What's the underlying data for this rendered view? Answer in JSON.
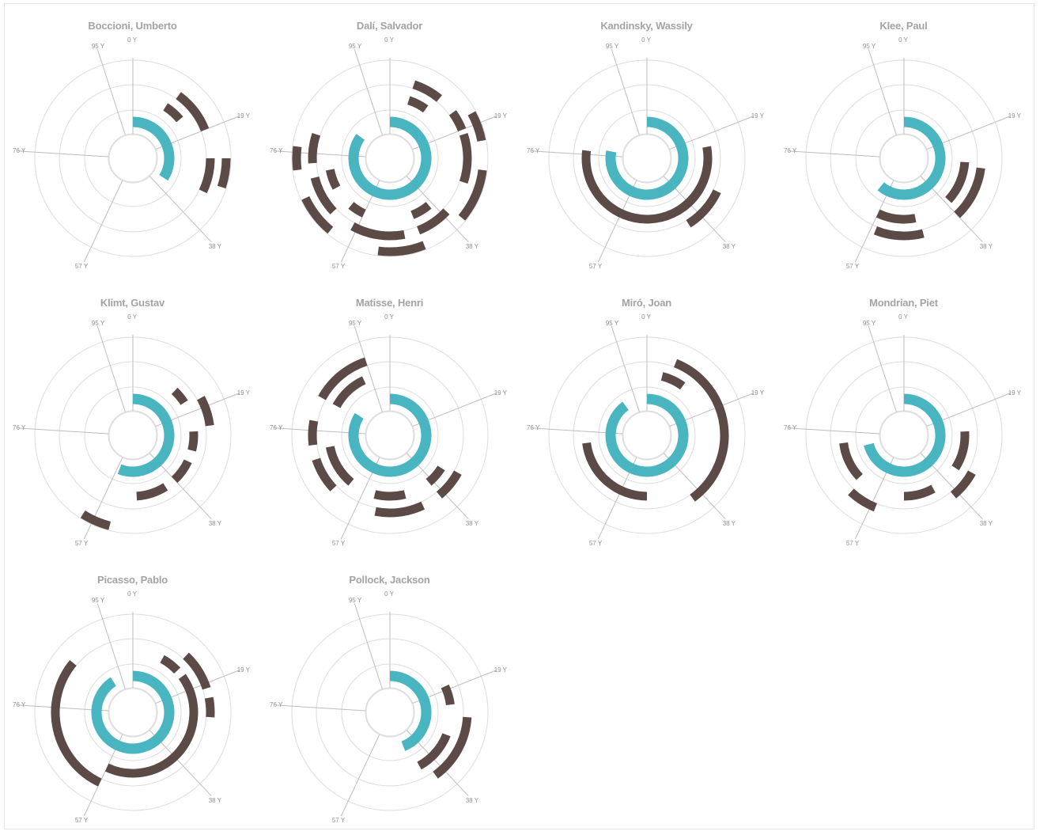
{
  "axis_labels": [
    "0 Y",
    "19 Y",
    "38 Y",
    "57 Y",
    "76 Y",
    "95 Y"
  ],
  "colors": {
    "life": "#48b5c1",
    "period": "#5b4a45",
    "grid": "#dcdcdc",
    "axis": "#bdbdbd",
    "title": "#a3a3a3",
    "tick": "#8e8e8e"
  },
  "chart_data": [
    {
      "type": "radial-timeline",
      "title": "Boccioni, Umberto",
      "life": [
        0,
        34
      ],
      "periods": [
        {
          "ring": 2,
          "start": 9,
          "end": 14
        },
        {
          "ring": 3,
          "start": 10,
          "end": 19
        },
        {
          "ring": 3,
          "start": 25,
          "end": 32
        },
        {
          "ring": 4,
          "start": 25,
          "end": 30
        }
      ]
    },
    {
      "type": "radial-timeline",
      "title": "Dalí, Salvador",
      "life": [
        0,
        85
      ],
      "periods": [
        {
          "ring": 2,
          "start": 5,
          "end": 10
        },
        {
          "ring": 3,
          "start": 5,
          "end": 11
        },
        {
          "ring": 3,
          "start": 15,
          "end": 19
        },
        {
          "ring": 4,
          "start": 17,
          "end": 22
        },
        {
          "ring": 3,
          "start": 20,
          "end": 30
        },
        {
          "ring": 4,
          "start": 27,
          "end": 36
        },
        {
          "ring": 2,
          "start": 39,
          "end": 44
        },
        {
          "ring": 3,
          "start": 37,
          "end": 44
        },
        {
          "ring": 3,
          "start": 47,
          "end": 54
        },
        {
          "ring": 4,
          "start": 44,
          "end": 52
        },
        {
          "ring": 2,
          "start": 57,
          "end": 61
        },
        {
          "ring": 3,
          "start": 53,
          "end": 58
        },
        {
          "ring": 3,
          "start": 63,
          "end": 71
        },
        {
          "ring": 4,
          "start": 61,
          "end": 68
        },
        {
          "ring": 2,
          "start": 67,
          "end": 72
        },
        {
          "ring": 3,
          "start": 74,
          "end": 80
        },
        {
          "ring": 4,
          "start": 73,
          "end": 77
        }
      ]
    },
    {
      "type": "radial-timeline",
      "title": "Kandinsky, Wassily",
      "life": [
        0,
        78
      ],
      "periods": [
        {
          "ring": 2,
          "start": 33,
          "end": 40
        },
        {
          "ring": 3,
          "start": 32,
          "end": 41
        },
        {
          "ring": 2,
          "start": 22,
          "end": 77
        }
      ]
    },
    {
      "type": "radial-timeline",
      "title": "Klee, Paul",
      "life": [
        0,
        61
      ],
      "periods": [
        {
          "ring": 2,
          "start": 26,
          "end": 37
        },
        {
          "ring": 3,
          "start": 46,
          "end": 56
        },
        {
          "ring": 2,
          "start": 47,
          "end": 57
        },
        {
          "ring": 3,
          "start": 27,
          "end": 38
        }
      ]
    },
    {
      "type": "radial-timeline",
      "title": "Klimt, Gustav",
      "life": [
        0,
        56
      ],
      "periods": [
        {
          "ring": 2,
          "start": 12,
          "end": 16
        },
        {
          "ring": 3,
          "start": 17,
          "end": 23
        },
        {
          "ring": 2,
          "start": 24,
          "end": 29
        },
        {
          "ring": 2,
          "start": 32,
          "end": 38
        },
        {
          "ring": 2,
          "start": 41,
          "end": 49
        },
        {
          "ring": 4,
          "start": 54,
          "end": 59
        }
      ]
    },
    {
      "type": "radial-timeline",
      "title": "Matisse, Henri",
      "life": [
        0,
        84
      ],
      "periods": [
        {
          "ring": 3,
          "start": 83,
          "end": 95
        },
        {
          "ring": 2,
          "start": 83,
          "end": 93
        },
        {
          "ring": 3,
          "start": 73,
          "end": 78
        },
        {
          "ring": 2,
          "start": 61,
          "end": 72
        },
        {
          "ring": 3,
          "start": 63,
          "end": 70
        },
        {
          "ring": 2,
          "start": 46,
          "end": 54
        },
        {
          "ring": 3,
          "start": 43,
          "end": 53
        },
        {
          "ring": 2,
          "start": 34,
          "end": 39
        },
        {
          "ring": 3,
          "start": 33,
          "end": 39
        }
      ]
    },
    {
      "type": "radial-timeline",
      "title": "Miró, Joan",
      "life": [
        0,
        90
      ],
      "periods": [
        {
          "ring": 2,
          "start": 4,
          "end": 10
        },
        {
          "ring": 3,
          "start": 6,
          "end": 40
        },
        {
          "ring": 2,
          "start": 50,
          "end": 73
        }
      ]
    },
    {
      "type": "radial-timeline",
      "title": "Mondrian, Piet",
      "life": [
        0,
        71
      ],
      "periods": [
        {
          "ring": 2,
          "start": 24,
          "end": 34
        },
        {
          "ring": 3,
          "start": 33,
          "end": 39
        },
        {
          "ring": 2,
          "start": 42,
          "end": 50
        },
        {
          "ring": 2,
          "start": 63,
          "end": 73
        },
        {
          "ring": 3,
          "start": 56,
          "end": 62
        }
      ]
    },
    {
      "type": "radial-timeline",
      "title": "Picasso, Pablo",
      "life": [
        0,
        91
      ],
      "periods": [
        {
          "ring": 2,
          "start": 8,
          "end": 13
        },
        {
          "ring": 3,
          "start": 12,
          "end": 20
        },
        {
          "ring": 3,
          "start": 22,
          "end": 26
        },
        {
          "ring": 2,
          "start": 15,
          "end": 57
        },
        {
          "ring": 3,
          "start": 57,
          "end": 86
        }
      ]
    },
    {
      "type": "radial-timeline",
      "title": "Pollock, Jackson",
      "life": [
        0,
        44
      ],
      "periods": [
        {
          "ring": 2,
          "start": 18,
          "end": 23
        },
        {
          "ring": 3,
          "start": 26,
          "end": 40
        },
        {
          "ring": 2,
          "start": 36,
          "end": 42
        },
        {
          "ring": 2,
          "start": 31,
          "end": 37
        }
      ]
    }
  ]
}
